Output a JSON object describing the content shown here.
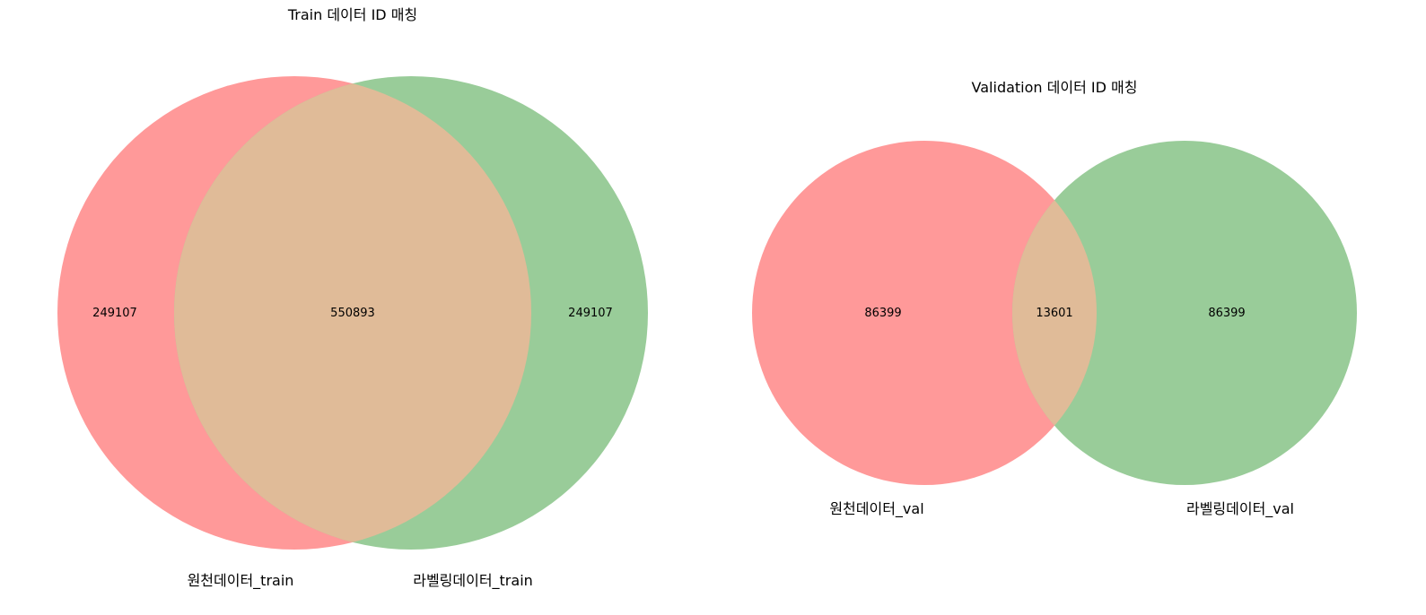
{
  "chart_data": [
    {
      "type": "venn",
      "title": "Train 데이터 ID 매칭",
      "sets": [
        {
          "label": "원천데이터_train",
          "color": "#ff9999",
          "only": 249107
        },
        {
          "label": "라벨링데이터_train",
          "color": "#99cc99",
          "only": 249107
        }
      ],
      "intersection": 550893,
      "intersection_color": "#e0bb98"
    },
    {
      "type": "venn",
      "title": "Validation 데이터 ID 매칭",
      "sets": [
        {
          "label": "원천데이터_val",
          "color": "#ff9999",
          "only": 86399
        },
        {
          "label": "라벨링데이터_val",
          "color": "#99cc99",
          "only": 86399
        }
      ],
      "intersection": 13601,
      "intersection_color": "#e0bb98"
    }
  ]
}
